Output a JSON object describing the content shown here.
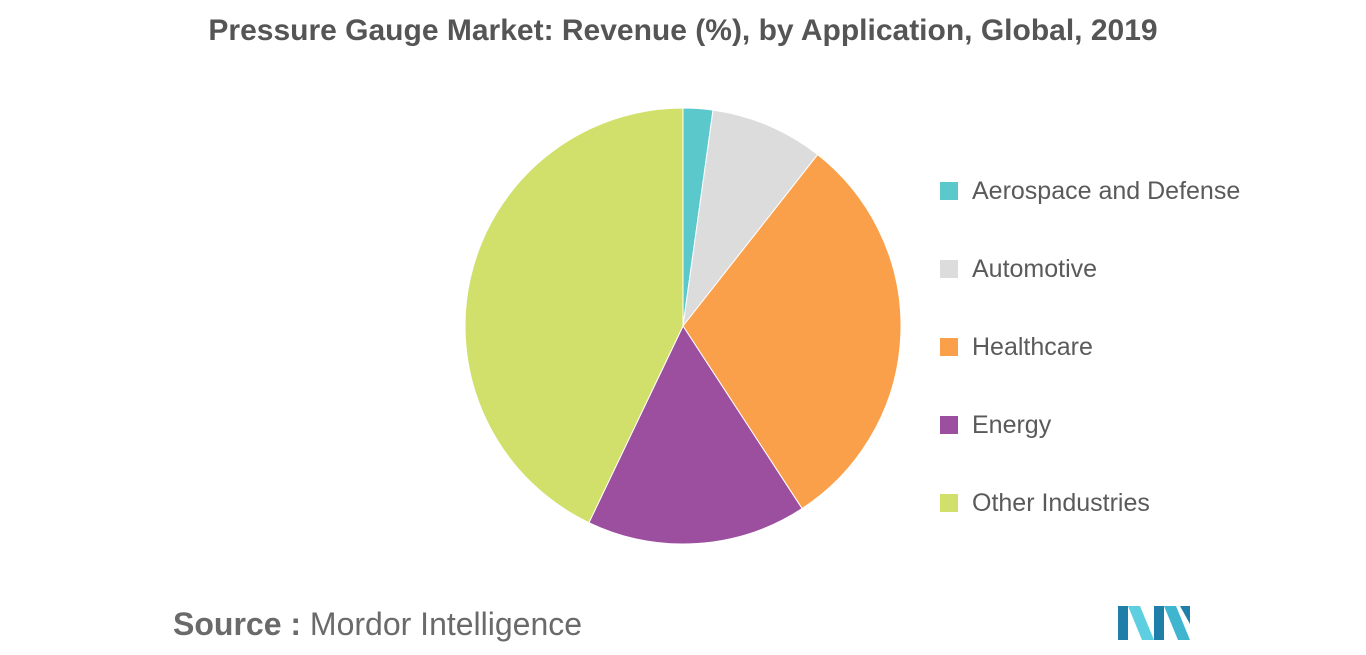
{
  "chart_data": {
    "type": "pie",
    "title": "Pressure Gauge Market: Revenue (%), by Application, Global, 2019",
    "legend_position": "right",
    "categories": [
      "Aerospace and Defense",
      "Automotive",
      "Healthcare",
      "Energy",
      "Other Industries"
    ],
    "values": [
      2.2,
      8.4,
      30.2,
      16.3,
      42.9
    ],
    "colors": [
      "#5bc8cc",
      "#dcdcdc",
      "#fba04a",
      "#9b4f9e",
      "#d1e06b"
    ]
  },
  "source": {
    "label": "Source :",
    "text": "Mordor Intelligence"
  },
  "logo": {
    "name": "mordor-intelligence-logo",
    "colors": [
      "#1f7fa8",
      "#3fb5d0",
      "#5ecfe0"
    ]
  }
}
